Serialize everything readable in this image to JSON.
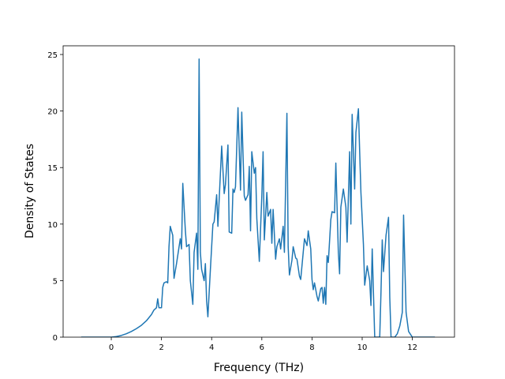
{
  "chart_data": {
    "type": "line",
    "xlabel": "Frequency (THz)",
    "ylabel": "Density of States",
    "xlim": [
      -1.92,
      13.68
    ],
    "ylim": [
      0,
      25.77
    ],
    "xticks": [
      0,
      2,
      4,
      6,
      8,
      10,
      12
    ],
    "yticks": [
      0,
      5,
      10,
      15,
      20,
      25
    ],
    "series": [
      {
        "color": "#1f77b4",
        "x": [
          -1.2,
          0,
          0.2,
          0.4,
          0.6,
          0.8,
          1.0,
          1.2,
          1.4,
          1.6,
          1.7,
          1.8,
          1.85,
          1.9,
          2.0,
          2.05,
          2.1,
          2.2,
          2.25,
          2.3,
          2.35,
          2.45,
          2.5,
          2.6,
          2.75,
          2.8,
          2.85,
          2.95,
          3.0,
          3.1,
          3.15,
          3.25,
          3.3,
          3.4,
          3.45,
          3.5,
          3.55,
          3.6,
          3.7,
          3.75,
          3.8,
          3.85,
          3.95,
          4.05,
          4.1,
          4.2,
          4.25,
          4.4,
          4.5,
          4.55,
          4.65,
          4.7,
          4.8,
          4.85,
          4.9,
          4.95,
          5.05,
          5.15,
          5.2,
          5.3,
          5.35,
          5.45,
          5.5,
          5.55,
          5.6,
          5.7,
          5.75,
          5.8,
          5.9,
          6.0,
          6.05,
          6.1,
          6.2,
          6.25,
          6.35,
          6.4,
          6.45,
          6.55,
          6.6,
          6.7,
          6.75,
          6.85,
          6.9,
          7.0,
          7.05,
          7.1,
          7.2,
          7.25,
          7.35,
          7.4,
          7.5,
          7.55,
          7.65,
          7.7,
          7.8,
          7.85,
          7.95,
          8.0,
          8.05,
          8.1,
          8.2,
          8.25,
          8.35,
          8.4,
          8.45,
          8.5,
          8.55,
          8.6,
          8.65,
          8.75,
          8.8,
          8.9,
          8.95,
          9.05,
          9.1,
          9.15,
          9.25,
          9.35,
          9.4,
          9.5,
          9.55,
          9.6,
          9.7,
          9.75,
          9.85,
          9.9,
          9.95,
          10.05,
          10.1,
          10.2,
          10.3,
          10.35,
          10.4,
          10.5,
          10.7,
          10.75,
          10.8,
          10.85,
          10.95,
          11.05,
          11.1,
          11.15,
          11.3,
          11.4,
          11.5,
          11.6,
          11.65,
          11.75,
          11.85,
          12.0,
          12.9
        ],
        "values": [
          0,
          0,
          0.05,
          0.15,
          0.3,
          0.5,
          0.75,
          1.05,
          1.45,
          2.0,
          2.4,
          2.6,
          3.4,
          2.6,
          2.6,
          4.4,
          4.8,
          4.9,
          4.8,
          8.0,
          9.8,
          9.0,
          5.2,
          6.5,
          8.7,
          7.8,
          13.6,
          9.5,
          8.0,
          8.2,
          5.0,
          2.9,
          7.5,
          9.2,
          6.0,
          24.6,
          7.5,
          6.0,
          5.0,
          6.5,
          3.2,
          1.8,
          6.0,
          10.0,
          10.2,
          12.6,
          9.8,
          16.9,
          12.7,
          13.5,
          17.0,
          9.3,
          9.2,
          13.1,
          12.8,
          13.3,
          20.3,
          13.0,
          19.9,
          12.5,
          12.1,
          12.6,
          15.1,
          9.4,
          16.4,
          14.5,
          15.0,
          10.5,
          6.7,
          12.5,
          16.4,
          8.6,
          12.8,
          10.7,
          11.3,
          8.3,
          11.3,
          6.9,
          8.0,
          8.7,
          7.8,
          9.8,
          7.5,
          19.8,
          8.0,
          5.5,
          6.8,
          8.0,
          7.0,
          6.9,
          5.4,
          5.1,
          7.5,
          8.7,
          8.1,
          9.4,
          7.8,
          5.1,
          4.2,
          4.8,
          3.6,
          3.2,
          4.3,
          4.4,
          3.0,
          4.4,
          2.9,
          7.2,
          6.6,
          10.4,
          11.1,
          11.0,
          15.4,
          7.5,
          5.6,
          11.5,
          13.1,
          11.5,
          8.4,
          16.4,
          10.0,
          19.7,
          13.1,
          18.1,
          20.2,
          16.4,
          12.8,
          8.2,
          4.6,
          6.3,
          5.0,
          2.8,
          7.8,
          0,
          0,
          4.0,
          8.6,
          5.8,
          9.0,
          10.6,
          3.5,
          0,
          0,
          0.3,
          1.0,
          2.2,
          10.8,
          2.2,
          0.5,
          0,
          0
        ]
      }
    ]
  }
}
